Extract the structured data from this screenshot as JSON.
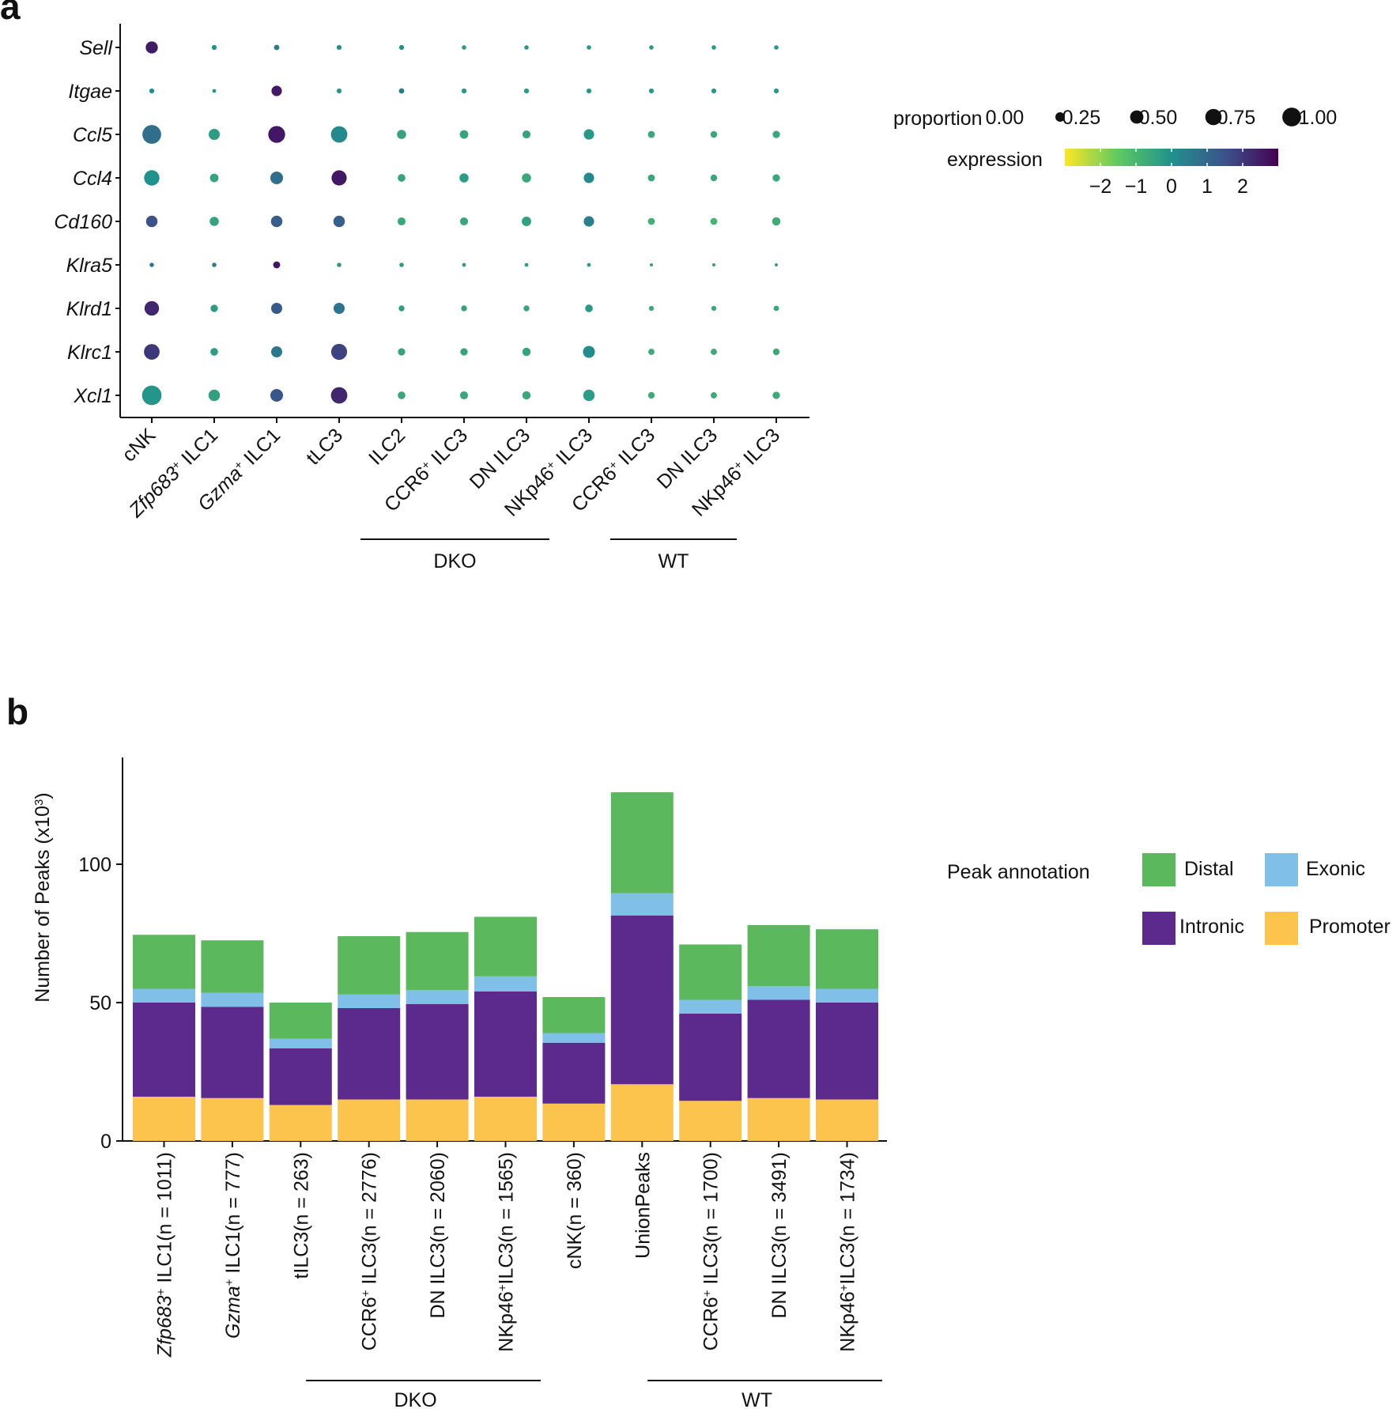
{
  "panels": [
    "a",
    "b"
  ],
  "chart_data": [
    {
      "type": "scatter",
      "subtype": "dot-plot",
      "genes": [
        "Sell",
        "Itgae",
        "Ccl5",
        "Ccl4",
        "Cd160",
        "Klra5",
        "Klrd1",
        "Klrc1",
        "Xcl1"
      ],
      "groups": [
        {
          "pre": "",
          "italic": "",
          "sup": "",
          "post": "cNK"
        },
        {
          "pre": "",
          "italic": "Zfp683",
          "sup": "+",
          "post": " ILC1"
        },
        {
          "pre": "",
          "italic": "Gzma",
          "sup": "+",
          "post": " ILC1"
        },
        {
          "pre": "",
          "italic": "",
          "sup": "",
          "post": "tLC3"
        },
        {
          "pre": "",
          "italic": "",
          "sup": "",
          "post": "ILC2"
        },
        {
          "pre": "CCR6",
          "italic": "",
          "sup": "+",
          "post": " ILC3"
        },
        {
          "pre": "",
          "italic": "",
          "sup": "",
          "post": "DN ILC3"
        },
        {
          "pre": "NKp46",
          "italic": "",
          "sup": "+",
          "post": " ILC3"
        },
        {
          "pre": "CCR6",
          "italic": "",
          "sup": "+",
          "post": " ILC3"
        },
        {
          "pre": "",
          "italic": "",
          "sup": "",
          "post": "DN ILC3"
        },
        {
          "pre": "NKp46",
          "italic": "",
          "sup": "+",
          "post": " ILC3"
        }
      ],
      "group_brackets": [
        {
          "label": "DKO",
          "from": 4,
          "to": 7
        },
        {
          "label": "WT",
          "from": 8,
          "to": 10
        }
      ],
      "proportion": [
        [
          0.3,
          0.05,
          0.06,
          0.05,
          0.05,
          0.04,
          0.04,
          0.04,
          0.04,
          0.04,
          0.04
        ],
        [
          0.05,
          0.03,
          0.22,
          0.05,
          0.06,
          0.05,
          0.05,
          0.05,
          0.05,
          0.05,
          0.05
        ],
        [
          0.72,
          0.25,
          0.58,
          0.55,
          0.17,
          0.15,
          0.13,
          0.22,
          0.1,
          0.09,
          0.11
        ],
        [
          0.48,
          0.15,
          0.33,
          0.47,
          0.12,
          0.17,
          0.17,
          0.22,
          0.1,
          0.09,
          0.11
        ],
        [
          0.27,
          0.17,
          0.27,
          0.27,
          0.13,
          0.13,
          0.18,
          0.22,
          0.1,
          0.1,
          0.14
        ],
        [
          0.04,
          0.04,
          0.1,
          0.04,
          0.04,
          0.03,
          0.03,
          0.03,
          0.02,
          0.02,
          0.02
        ],
        [
          0.43,
          0.11,
          0.25,
          0.25,
          0.07,
          0.07,
          0.07,
          0.12,
          0.05,
          0.05,
          0.06
        ],
        [
          0.5,
          0.12,
          0.25,
          0.52,
          0.11,
          0.11,
          0.14,
          0.29,
          0.08,
          0.08,
          0.09
        ],
        [
          0.78,
          0.27,
          0.33,
          0.55,
          0.12,
          0.13,
          0.14,
          0.27,
          0.09,
          0.08,
          0.11
        ]
      ],
      "expression": [
        [
          2.5,
          0.0,
          0.5,
          0.0,
          0.0,
          -0.2,
          -0.2,
          -0.2,
          -0.2,
          -0.2,
          -0.2
        ],
        [
          0.0,
          -0.2,
          2.6,
          -0.2,
          0.5,
          -0.2,
          -0.2,
          -0.2,
          -0.2,
          -0.2,
          -0.2
        ],
        [
          0.8,
          -0.3,
          2.6,
          0.2,
          -0.5,
          -0.5,
          -0.5,
          -0.2,
          -0.6,
          -0.6,
          -0.6
        ],
        [
          0.0,
          -0.5,
          0.8,
          2.6,
          -0.5,
          -0.3,
          -0.6,
          0.2,
          -0.6,
          -0.6,
          -0.6
        ],
        [
          1.5,
          -0.5,
          1.2,
          1.2,
          -0.6,
          -0.6,
          -0.4,
          0.4,
          -0.8,
          -0.9,
          -0.7
        ],
        [
          0.5,
          0.5,
          2.6,
          -0.3,
          -0.3,
          -0.3,
          -0.3,
          -0.3,
          -0.3,
          -0.3,
          -0.3
        ],
        [
          2.3,
          -0.3,
          1.3,
          0.7,
          -0.4,
          -0.5,
          -0.5,
          -0.2,
          -0.6,
          -0.6,
          -0.6
        ],
        [
          2.0,
          -0.3,
          0.6,
          1.8,
          -0.5,
          -0.5,
          -0.5,
          0.1,
          -0.7,
          -0.7,
          -0.6
        ],
        [
          -0.1,
          -0.4,
          1.4,
          2.3,
          -0.6,
          -0.6,
          -0.6,
          -0.3,
          -0.7,
          -0.7,
          -0.7
        ]
      ],
      "legend": {
        "proportion_title": "proportion",
        "proportion_labels": [
          "0.00",
          "0.25",
          "0.50",
          "0.75",
          "1.00"
        ],
        "proportion_values": [
          0.0,
          0.25,
          0.5,
          0.75,
          1.0
        ],
        "expression_title": "expression",
        "expression_ticks": [
          "−2",
          "−1",
          "0",
          "1",
          "2"
        ],
        "expression_tick_values": [
          -2,
          -1,
          0,
          1,
          2
        ],
        "expression_range": [
          -3,
          3
        ],
        "colormap": [
          "#fde725",
          "#5ec962",
          "#21918c",
          "#3b528b",
          "#440154"
        ]
      }
    },
    {
      "type": "bar",
      "stacked": true,
      "ylabel": "Number of Peaks (x10",
      "ylabel_sup": "3",
      "ylabel_end": ")",
      "ylim": [
        0,
        130
      ],
      "yticks": [
        "0",
        "50",
        "100"
      ],
      "ytick_values": [
        0,
        50,
        100
      ],
      "categories": [
        {
          "italic": "Zfp683",
          "sup": "+",
          "pre": "",
          "post": " ILC1(n = 1011)"
        },
        {
          "italic": "Gzma",
          "sup": "+",
          "pre": "",
          "post": " ILC1(n = 777)"
        },
        {
          "italic": "",
          "sup": "",
          "pre": "",
          "post": "tILC3(n = 263)"
        },
        {
          "italic": "",
          "sup": "+",
          "pre": "CCR6",
          "post": " ILC3(n = 2776)"
        },
        {
          "italic": "",
          "sup": "",
          "pre": "",
          "post": "DN ILC3(n = 2060)"
        },
        {
          "italic": "",
          "sup": "+",
          "pre": "NKp46",
          "post": "ILC3(n = 1565)"
        },
        {
          "italic": "",
          "sup": "",
          "pre": "",
          "post": "cNK(n = 360)"
        },
        {
          "italic": "",
          "sup": "",
          "pre": "",
          "post": "UnionPeaks"
        },
        {
          "italic": "",
          "sup": "+",
          "pre": "CCR6",
          "post": " ILC3(n = 1700)"
        },
        {
          "italic": "",
          "sup": "",
          "pre": "",
          "post": "DN ILC3(n = 3491)"
        },
        {
          "italic": "",
          "sup": "+",
          "pre": "NKp46",
          "post": "ILC3(n = 1734)"
        }
      ],
      "group_brackets": [
        {
          "label": "DKO",
          "from": 3,
          "to": 5
        },
        {
          "label": "WT",
          "from": 8,
          "to": 10
        }
      ],
      "series": [
        {
          "name": "Promoter",
          "color": "#fcc44c",
          "values": [
            16.0,
            15.5,
            13.0,
            15.0,
            15.0,
            16.0,
            13.5,
            20.5,
            14.5,
            15.5,
            15.0
          ]
        },
        {
          "name": "Intronic",
          "color": "#5b2a8c",
          "values": [
            34.0,
            33.0,
            20.5,
            33.0,
            34.5,
            38.0,
            22.0,
            61.0,
            31.5,
            35.5,
            35.0
          ]
        },
        {
          "name": "Exonic",
          "color": "#80c0e8",
          "values": [
            5.0,
            5.0,
            3.5,
            5.0,
            5.0,
            5.5,
            3.5,
            8.0,
            5.0,
            5.0,
            5.0
          ]
        },
        {
          "name": "Distal",
          "color": "#5cb85c",
          "values": [
            19.5,
            19.0,
            13.0,
            21.0,
            21.0,
            21.5,
            13.0,
            36.5,
            20.0,
            22.0,
            21.5
          ]
        }
      ],
      "legend": {
        "title": "Peak annotation",
        "order": [
          "Distal",
          "Exonic",
          "Intronic",
          "Promoter"
        ]
      }
    }
  ]
}
